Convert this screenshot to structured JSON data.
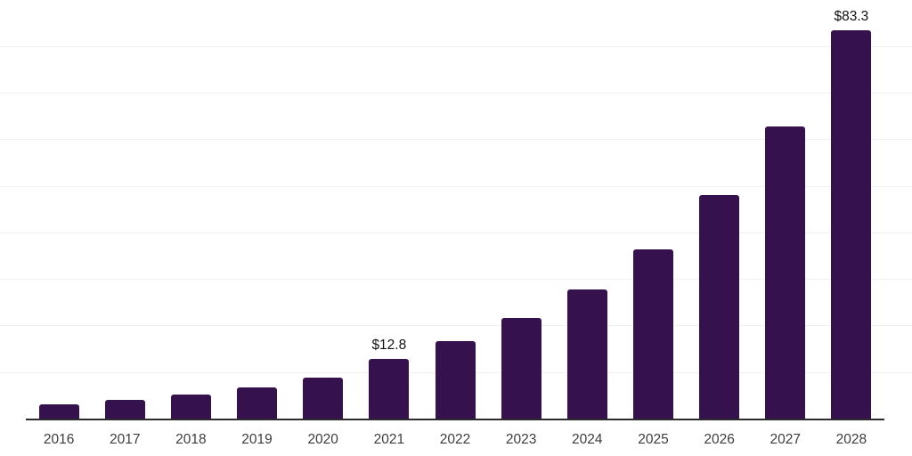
{
  "chart_data": {
    "type": "bar",
    "title": "",
    "xlabel": "",
    "ylabel": "",
    "categories": [
      "2016",
      "2017",
      "2018",
      "2019",
      "2020",
      "2021",
      "2022",
      "2023",
      "2024",
      "2025",
      "2026",
      "2027",
      "2028"
    ],
    "values": [
      3.1,
      4.0,
      5.2,
      6.7,
      8.7,
      12.8,
      16.6,
      21.6,
      27.8,
      36.3,
      47.9,
      62.8,
      83.3
    ],
    "data_labels": [
      "",
      "",
      "",
      "",
      "",
      "$12.8",
      "",
      "",
      "",
      "",
      "",
      "",
      "$83.3"
    ],
    "ylim": [
      0,
      90
    ],
    "gridline_step": 10,
    "grid": true,
    "y_axis_ticks_visible": false,
    "legend": "none",
    "colors": {
      "bar": "#35114E",
      "axis_line": "#2b2b2b",
      "gridline": "#f1f1f1",
      "tick_label": "#3d3d3d",
      "data_label": "#111111",
      "background": "#ffffff"
    }
  }
}
